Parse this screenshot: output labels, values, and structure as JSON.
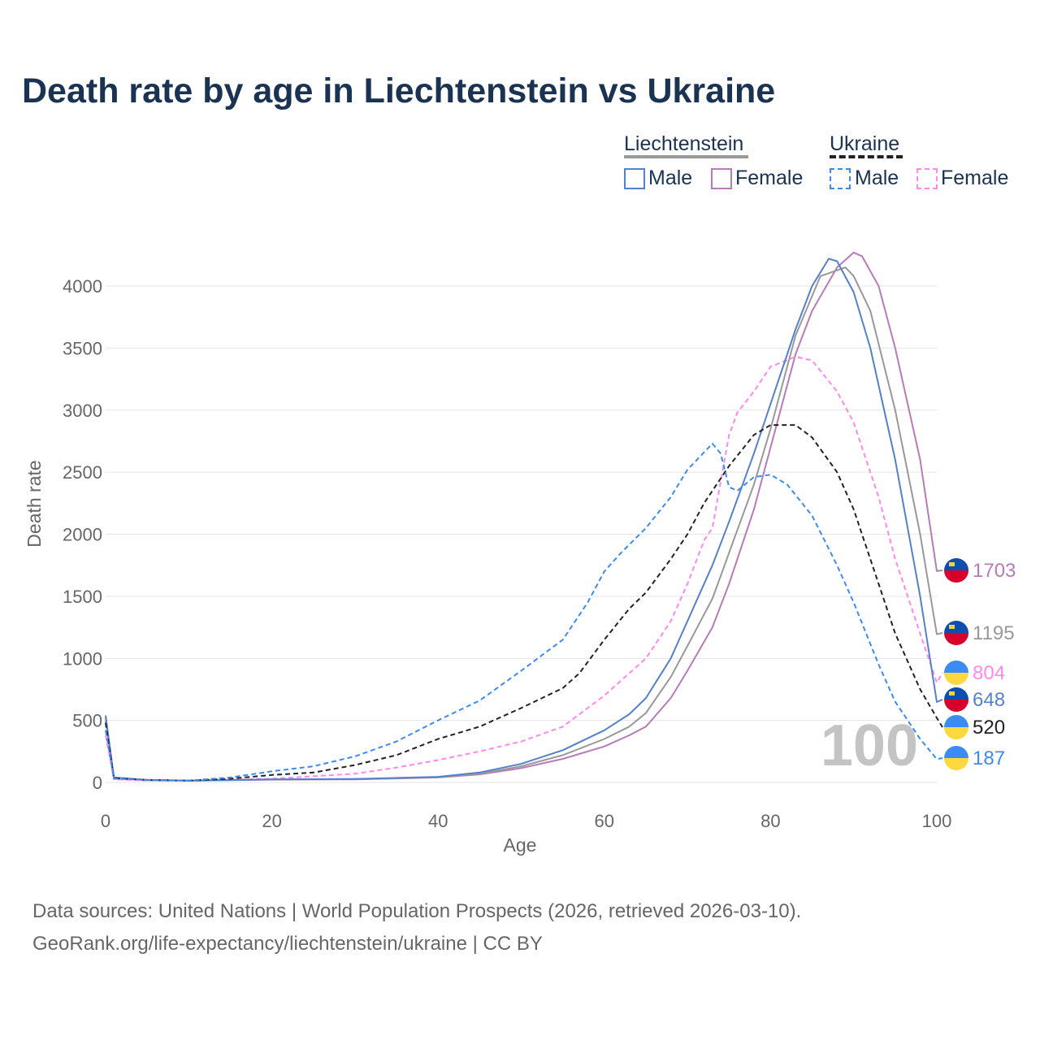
{
  "title": "Death rate by age in Liechtenstein vs Ukraine",
  "legend": {
    "group1": "Liechtenstein",
    "group2": "Ukraine",
    "male": "Male",
    "female": "Female"
  },
  "source_line1": "Data sources: United Nations | World Population Prospects (2026, retrieved 2026-03-10).",
  "source_line2": "GeoRank.org/life-expectancy/liechtenstein/ukraine | CC BY",
  "chart_data": {
    "type": "line",
    "title": "Death rate by age in Liechtenstein vs Ukraine",
    "xlabel": "Age",
    "ylabel": "Death rate",
    "xlim": [
      0,
      100
    ],
    "ylim": [
      0,
      4300
    ],
    "xticks": [
      0,
      20,
      40,
      60,
      80,
      100
    ],
    "yticks": [
      0,
      500,
      1000,
      1500,
      2000,
      2500,
      3000,
      3500,
      4000
    ],
    "grid": true,
    "age_watermark": "100",
    "series": [
      {
        "name": "Liechtenstein Female",
        "color": "#b77cb8",
        "dashed": false,
        "end_label": "1703",
        "flag": "li",
        "points": [
          [
            0,
            500
          ],
          [
            1,
            35
          ],
          [
            5,
            18
          ],
          [
            10,
            14
          ],
          [
            15,
            18
          ],
          [
            20,
            22
          ],
          [
            30,
            25
          ],
          [
            40,
            40
          ],
          [
            45,
            65
          ],
          [
            50,
            115
          ],
          [
            55,
            190
          ],
          [
            60,
            290
          ],
          [
            63,
            380
          ],
          [
            65,
            450
          ],
          [
            68,
            680
          ],
          [
            70,
            900
          ],
          [
            73,
            1250
          ],
          [
            75,
            1600
          ],
          [
            78,
            2200
          ],
          [
            80,
            2700
          ],
          [
            83,
            3450
          ],
          [
            85,
            3800
          ],
          [
            88,
            4150
          ],
          [
            90,
            4270
          ],
          [
            91,
            4240
          ],
          [
            93,
            4000
          ],
          [
            95,
            3500
          ],
          [
            98,
            2600
          ],
          [
            100,
            1703
          ]
        ]
      },
      {
        "name": "Liechtenstein",
        "color": "#999999",
        "dashed": false,
        "end_label": "1195",
        "flag": "li",
        "points": [
          [
            0,
            520
          ],
          [
            1,
            38
          ],
          [
            5,
            19
          ],
          [
            10,
            14
          ],
          [
            15,
            19
          ],
          [
            20,
            24
          ],
          [
            30,
            27
          ],
          [
            40,
            42
          ],
          [
            45,
            70
          ],
          [
            50,
            130
          ],
          [
            55,
            220
          ],
          [
            60,
            350
          ],
          [
            63,
            450
          ],
          [
            65,
            560
          ],
          [
            68,
            850
          ],
          [
            70,
            1100
          ],
          [
            73,
            1480
          ],
          [
            75,
            1850
          ],
          [
            78,
            2400
          ],
          [
            80,
            2850
          ],
          [
            83,
            3600
          ],
          [
            86,
            4080
          ],
          [
            89,
            4150
          ],
          [
            90,
            4080
          ],
          [
            92,
            3800
          ],
          [
            95,
            3000
          ],
          [
            98,
            2000
          ],
          [
            100,
            1195
          ]
        ]
      },
      {
        "name": "Ukraine Female",
        "color": "#ff88ee",
        "dashed": true,
        "end_label": "804",
        "flag": "ua",
        "points": [
          [
            0,
            380
          ],
          [
            1,
            25
          ],
          [
            5,
            15
          ],
          [
            10,
            12
          ],
          [
            20,
            30
          ],
          [
            30,
            70
          ],
          [
            35,
            120
          ],
          [
            40,
            180
          ],
          [
            45,
            250
          ],
          [
            50,
            330
          ],
          [
            55,
            450
          ],
          [
            60,
            700
          ],
          [
            65,
            1000
          ],
          [
            68,
            1300
          ],
          [
            70,
            1600
          ],
          [
            72,
            1950
          ],
          [
            73,
            2050
          ],
          [
            75,
            2800
          ],
          [
            76,
            2980
          ],
          [
            78,
            3150
          ],
          [
            80,
            3350
          ],
          [
            83,
            3430
          ],
          [
            85,
            3400
          ],
          [
            88,
            3150
          ],
          [
            90,
            2900
          ],
          [
            93,
            2300
          ],
          [
            95,
            1800
          ],
          [
            98,
            1200
          ],
          [
            100,
            804
          ]
        ]
      },
      {
        "name": "Liechtenstein Male",
        "color": "#5580cc",
        "dashed": false,
        "end_label": "648",
        "flag": "li",
        "points": [
          [
            0,
            540
          ],
          [
            1,
            40
          ],
          [
            5,
            20
          ],
          [
            10,
            15
          ],
          [
            15,
            20
          ],
          [
            20,
            25
          ],
          [
            30,
            28
          ],
          [
            40,
            45
          ],
          [
            45,
            80
          ],
          [
            50,
            150
          ],
          [
            55,
            260
          ],
          [
            60,
            420
          ],
          [
            63,
            550
          ],
          [
            65,
            680
          ],
          [
            68,
            1000
          ],
          [
            70,
            1300
          ],
          [
            73,
            1750
          ],
          [
            75,
            2100
          ],
          [
            78,
            2650
          ],
          [
            80,
            3050
          ],
          [
            83,
            3650
          ],
          [
            85,
            4000
          ],
          [
            87,
            4220
          ],
          [
            88,
            4200
          ],
          [
            90,
            3950
          ],
          [
            92,
            3500
          ],
          [
            95,
            2600
          ],
          [
            98,
            1500
          ],
          [
            100,
            648
          ]
        ]
      },
      {
        "name": "Ukraine",
        "color": "#222222",
        "dashed": true,
        "end_label": "520",
        "flag": "ua",
        "points": [
          [
            0,
            480
          ],
          [
            1,
            35
          ],
          [
            5,
            20
          ],
          [
            10,
            15
          ],
          [
            15,
            30
          ],
          [
            20,
            60
          ],
          [
            25,
            80
          ],
          [
            30,
            140
          ],
          [
            35,
            220
          ],
          [
            40,
            350
          ],
          [
            45,
            450
          ],
          [
            50,
            600
          ],
          [
            55,
            760
          ],
          [
            57,
            880
          ],
          [
            60,
            1150
          ],
          [
            63,
            1400
          ],
          [
            65,
            1530
          ],
          [
            68,
            1800
          ],
          [
            70,
            2000
          ],
          [
            72,
            2250
          ],
          [
            75,
            2550
          ],
          [
            78,
            2800
          ],
          [
            80,
            2880
          ],
          [
            83,
            2880
          ],
          [
            85,
            2780
          ],
          [
            88,
            2500
          ],
          [
            90,
            2200
          ],
          [
            93,
            1600
          ],
          [
            95,
            1200
          ],
          [
            98,
            750
          ],
          [
            100,
            520
          ]
        ]
      },
      {
        "name": "Ukraine Male",
        "color": "#3b8bf5",
        "dashed": true,
        "end_label": "187",
        "flag": "ua",
        "points": [
          [
            0,
            420
          ],
          [
            1,
            30
          ],
          [
            5,
            20
          ],
          [
            10,
            15
          ],
          [
            15,
            40
          ],
          [
            20,
            90
          ],
          [
            25,
            130
          ],
          [
            30,
            210
          ],
          [
            35,
            330
          ],
          [
            40,
            500
          ],
          [
            45,
            660
          ],
          [
            50,
            900
          ],
          [
            55,
            1150
          ],
          [
            58,
            1450
          ],
          [
            60,
            1700
          ],
          [
            62,
            1850
          ],
          [
            65,
            2050
          ],
          [
            68,
            2300
          ],
          [
            70,
            2520
          ],
          [
            73,
            2730
          ],
          [
            74,
            2650
          ],
          [
            75,
            2380
          ],
          [
            76,
            2350
          ],
          [
            78,
            2460
          ],
          [
            80,
            2480
          ],
          [
            82,
            2400
          ],
          [
            85,
            2150
          ],
          [
            88,
            1750
          ],
          [
            90,
            1450
          ],
          [
            93,
            950
          ],
          [
            95,
            650
          ],
          [
            98,
            350
          ],
          [
            100,
            187
          ]
        ]
      }
    ]
  }
}
